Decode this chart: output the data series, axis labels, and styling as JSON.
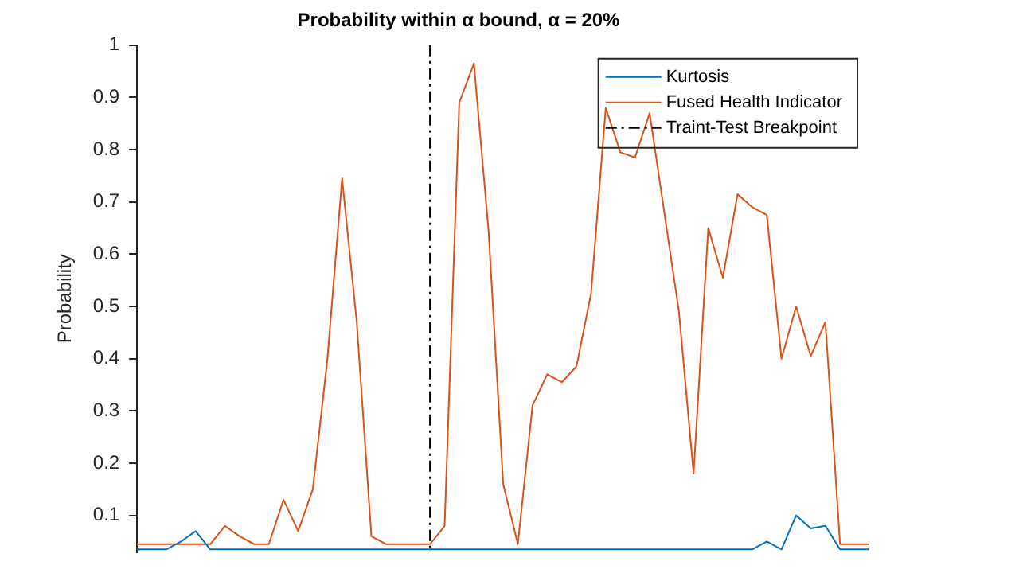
{
  "chart_data": {
    "type": "line",
    "title": "Probability within α bound, α = 20%",
    "ylabel": "Probability",
    "categories": [
      null,
      null,
      null,
      null,
      null,
      null,
      null,
      null,
      null,
      null,
      null,
      null,
      null,
      null,
      null,
      null,
      null,
      null,
      null,
      null,
      null,
      null,
      null,
      null,
      null,
      null,
      null,
      null,
      null,
      null,
      null,
      null,
      null,
      null,
      null,
      null,
      null,
      null,
      null,
      null,
      null,
      null,
      null,
      null,
      null,
      null,
      null,
      null,
      null,
      null,
      null
    ],
    "ylim": [
      0.03,
      1
    ],
    "yticks": [
      0.1,
      0.2,
      0.3,
      0.4,
      0.5,
      0.6,
      0.7,
      0.8,
      0.9,
      1
    ],
    "tick_labels": "y",
    "legend": "top right",
    "line_style": "solid",
    "series": [
      {
        "name": "Kurtosis",
        "color": "#0072bd",
        "values": [
          0.035,
          0.035,
          0.035,
          0.05,
          0.07,
          0.035,
          0.035,
          0.035,
          0.035,
          0.035,
          0.035,
          0.035,
          0.035,
          0.035,
          0.035,
          0.035,
          0.035,
          0.035,
          0.035,
          0.035,
          0.035,
          0.035,
          0.035,
          0.035,
          0.035,
          0.035,
          0.035,
          0.035,
          0.035,
          0.035,
          0.035,
          0.035,
          0.035,
          0.035,
          0.035,
          0.035,
          0.035,
          0.035,
          0.035,
          0.035,
          0.035,
          0.035,
          0.035,
          0.05,
          0.035,
          0.1,
          0.075,
          0.08,
          0.035,
          0.035,
          0.035
        ]
      },
      {
        "name": "Fused Health Indicator",
        "color": "#d95319",
        "values": [
          0.045,
          0.045,
          0.045,
          0.045,
          0.045,
          0.045,
          0.08,
          0.06,
          0.045,
          0.045,
          0.13,
          0.07,
          0.15,
          0.4,
          0.745,
          0.47,
          0.06,
          0.045,
          0.045,
          0.045,
          0.045,
          0.08,
          0.89,
          0.965,
          0.645,
          0.16,
          0.045,
          0.31,
          0.37,
          0.355,
          0.385,
          0.525,
          0.88,
          0.795,
          0.785,
          0.87,
          0.68,
          0.49,
          0.18,
          0.65,
          0.555,
          0.715,
          0.69,
          0.675,
          0.4,
          0.5,
          0.405,
          0.47,
          0.045,
          0.045,
          0.045
        ]
      }
    ],
    "ref_lines": [
      {
        "axis": "x",
        "label": "Traint-Test Breakpoint",
        "color": "#000000",
        "line_style": "dashdot"
      }
    ]
  }
}
